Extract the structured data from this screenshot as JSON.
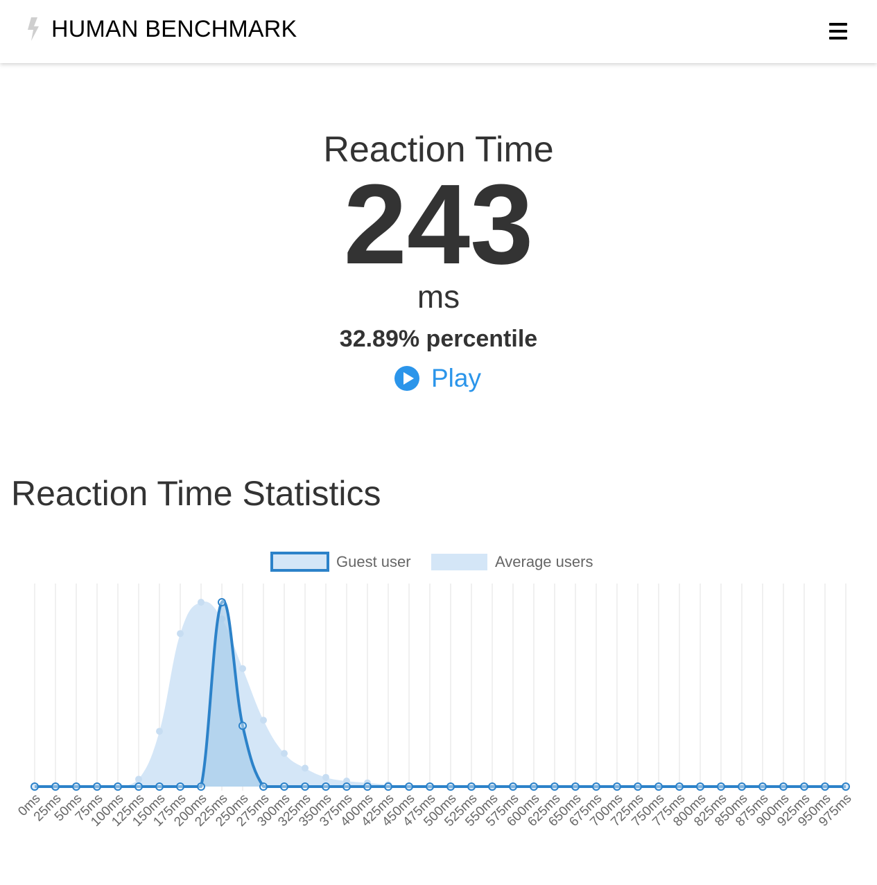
{
  "nav": {
    "brand": "HUMAN BENCHMARK",
    "logo_icon": "lightning-bolt-icon",
    "menu_icon": "hamburger-menu-icon"
  },
  "result": {
    "title": "Reaction Time",
    "score": "243",
    "unit": "ms",
    "percentile": "32.89% percentile",
    "play_label": "Play",
    "play_icon": "play-circle-icon"
  },
  "stats": {
    "heading": "Reaction Time Statistics"
  },
  "colors": {
    "accent": "#2b95ea",
    "guest_line": "#2c82c9",
    "average_fill": "#d4e6f7",
    "guest_fill": "#a9cdeb",
    "grid": "#e2e2e2",
    "text": "#333333"
  },
  "chart_data": {
    "type": "area",
    "categories": [
      "0ms",
      "25ms",
      "50ms",
      "75ms",
      "100ms",
      "125ms",
      "150ms",
      "175ms",
      "200ms",
      "225ms",
      "250ms",
      "275ms",
      "300ms",
      "325ms",
      "350ms",
      "375ms",
      "400ms",
      "425ms",
      "450ms",
      "475ms",
      "500ms",
      "525ms",
      "550ms",
      "575ms",
      "600ms",
      "625ms",
      "650ms",
      "675ms",
      "700ms",
      "725ms",
      "750ms",
      "775ms",
      "800ms",
      "825ms",
      "850ms",
      "875ms",
      "900ms",
      "925ms",
      "950ms",
      "975ms"
    ],
    "series": [
      {
        "name": "Guest user",
        "style": "line",
        "values": [
          0,
          0,
          0,
          0,
          0,
          0,
          0,
          0,
          0,
          1,
          0.33,
          0,
          0,
          0,
          0,
          0,
          0,
          0,
          0,
          0,
          0,
          0,
          0,
          0,
          0,
          0,
          0,
          0,
          0,
          0,
          0,
          0,
          0,
          0,
          0,
          0,
          0,
          0,
          0,
          0
        ]
      },
      {
        "name": "Average users",
        "style": "area",
        "values": [
          0,
          0,
          0,
          0,
          0,
          0.04,
          0.3,
          0.83,
          1,
          0.91,
          0.64,
          0.36,
          0.18,
          0.1,
          0.05,
          0.03,
          0.02,
          0.01,
          0,
          0,
          0,
          0,
          0,
          0,
          0,
          0,
          0,
          0,
          0,
          0,
          0,
          0,
          0,
          0,
          0,
          0,
          0,
          0,
          0,
          0
        ]
      }
    ],
    "ylim": [
      0,
      1
    ],
    "xlabel": "",
    "ylabel": "",
    "grid": "vertical",
    "y_axis_labels": false,
    "legend": "top-center"
  }
}
